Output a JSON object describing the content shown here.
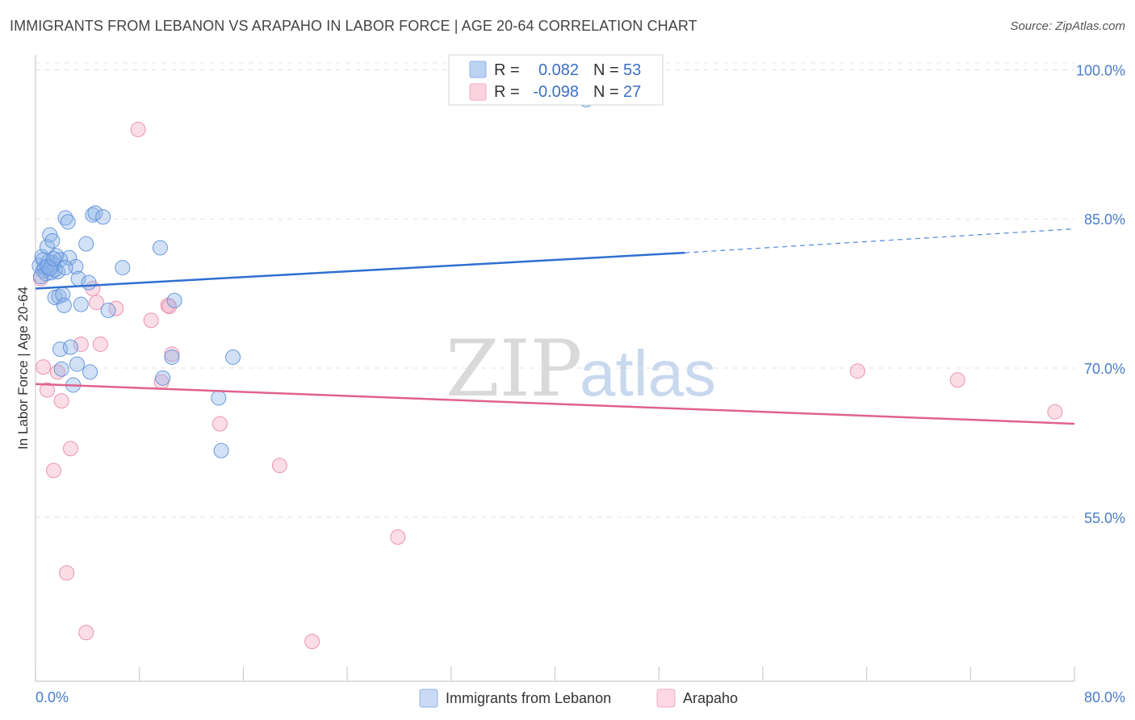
{
  "header": {
    "title": "IMMIGRANTS FROM LEBANON VS ARAPAHO IN LABOR FORCE | AGE 20-64 CORRELATION CHART",
    "source": "Source: ZipAtlas.com"
  },
  "legend": {
    "rows": [
      {
        "r_label": "R =",
        "r_value": "0.082",
        "n_label": "N =",
        "n_value": "53",
        "color": "#8fb3e8"
      },
      {
        "r_label": "R =",
        "r_value": "-0.098",
        "n_label": "N =",
        "n_value": "27",
        "color": "#f4aac0"
      }
    ]
  },
  "watermark": {
    "zip": "ZIP",
    "atlas": "atlas"
  },
  "chart_data": {
    "type": "scatter",
    "title": "IMMIGRANTS FROM LEBANON VS ARAPAHO IN LABOR FORCE | AGE 20-64 CORRELATION CHART",
    "xlabel": "",
    "ylabel": "In Labor Force | Age 20-64",
    "xlim": [
      0,
      80
    ],
    "ylim": [
      38.5,
      101.5
    ],
    "x_tick_labels": [
      "0.0%",
      "80.0%"
    ],
    "y_ticks": [
      55,
      70,
      85,
      100
    ],
    "y_tick_labels": [
      "55.0%",
      "70.0%",
      "85.0%",
      "100.0%"
    ],
    "grid": true,
    "series": [
      {
        "name": "Immigrants from Lebanon",
        "color": "#8fb3e8",
        "stroke": "#5b8fd9",
        "trend": {
          "x0": 0,
          "y0": 78.0,
          "x1": 50,
          "y1": 81.6,
          "dash_to_x": 80,
          "dash_to_y": 84.0
        },
        "points": [
          [
            0.3,
            80.3
          ],
          [
            0.5,
            81.2
          ],
          [
            0.6,
            79.8
          ],
          [
            0.7,
            80.1
          ],
          [
            0.8,
            79.5
          ],
          [
            0.9,
            82.2
          ],
          [
            1.0,
            80.7
          ],
          [
            1.1,
            83.4
          ],
          [
            1.2,
            79.6
          ],
          [
            1.3,
            82.8
          ],
          [
            1.4,
            80.4
          ],
          [
            1.5,
            77.1
          ],
          [
            1.6,
            81.3
          ],
          [
            1.7,
            79.7
          ],
          [
            1.8,
            77.2
          ],
          [
            1.9,
            71.9
          ],
          [
            2.0,
            69.9
          ],
          [
            2.1,
            77.4
          ],
          [
            2.2,
            76.3
          ],
          [
            2.3,
            85.1
          ],
          [
            2.5,
            84.7
          ],
          [
            2.6,
            81.1
          ],
          [
            2.7,
            72.1
          ],
          [
            2.9,
            68.3
          ],
          [
            3.1,
            80.2
          ],
          [
            3.2,
            70.4
          ],
          [
            3.3,
            79.0
          ],
          [
            3.5,
            76.4
          ],
          [
            3.9,
            82.5
          ],
          [
            4.1,
            78.6
          ],
          [
            4.2,
            69.6
          ],
          [
            4.4,
            85.4
          ],
          [
            4.6,
            85.6
          ],
          [
            5.2,
            85.2
          ],
          [
            5.6,
            75.8
          ],
          [
            6.7,
            80.1
          ],
          [
            9.6,
            82.1
          ],
          [
            9.8,
            69.0
          ],
          [
            10.5,
            71.1
          ],
          [
            10.7,
            76.8
          ],
          [
            14.1,
            67.0
          ],
          [
            14.3,
            61.7
          ],
          [
            15.2,
            71.1
          ],
          [
            1.3,
            80.6
          ],
          [
            0.4,
            79.2
          ],
          [
            1.9,
            80.9
          ],
          [
            0.6,
            80.9
          ],
          [
            1.5,
            79.9
          ],
          [
            0.9,
            80.2
          ],
          [
            1.1,
            80.0
          ],
          [
            2.3,
            80.1
          ],
          [
            1.4,
            81.0
          ],
          [
            42.4,
            97.0
          ]
        ]
      },
      {
        "name": "Arapaho",
        "color": "#f4aac0",
        "stroke": "#e88aa8",
        "trend": {
          "x0": 0,
          "y0": 68.4,
          "x1": 80,
          "y1": 64.4
        },
        "points": [
          [
            0.4,
            79.0
          ],
          [
            0.6,
            70.1
          ],
          [
            0.9,
            67.8
          ],
          [
            1.4,
            59.7
          ],
          [
            1.7,
            69.6
          ],
          [
            2.0,
            66.7
          ],
          [
            2.4,
            49.4
          ],
          [
            2.7,
            61.9
          ],
          [
            3.5,
            72.4
          ],
          [
            3.9,
            43.4
          ],
          [
            4.4,
            78.0
          ],
          [
            4.7,
            76.6
          ],
          [
            5.0,
            72.4
          ],
          [
            6.2,
            76.0
          ],
          [
            7.9,
            94.0
          ],
          [
            8.9,
            74.8
          ],
          [
            9.7,
            68.6
          ],
          [
            10.2,
            76.3
          ],
          [
            10.3,
            76.2
          ],
          [
            10.5,
            71.4
          ],
          [
            14.2,
            64.4
          ],
          [
            18.8,
            60.2
          ],
          [
            21.3,
            42.5
          ],
          [
            27.9,
            53.0
          ],
          [
            63.3,
            69.7
          ],
          [
            71.0,
            68.8
          ],
          [
            78.5,
            65.6
          ]
        ]
      }
    ]
  },
  "bottom_legend": {
    "items": [
      {
        "label": "Immigrants from Lebanon",
        "color": "#8fb3e8"
      },
      {
        "label": "Arapaho",
        "color": "#f4aac0"
      }
    ]
  }
}
